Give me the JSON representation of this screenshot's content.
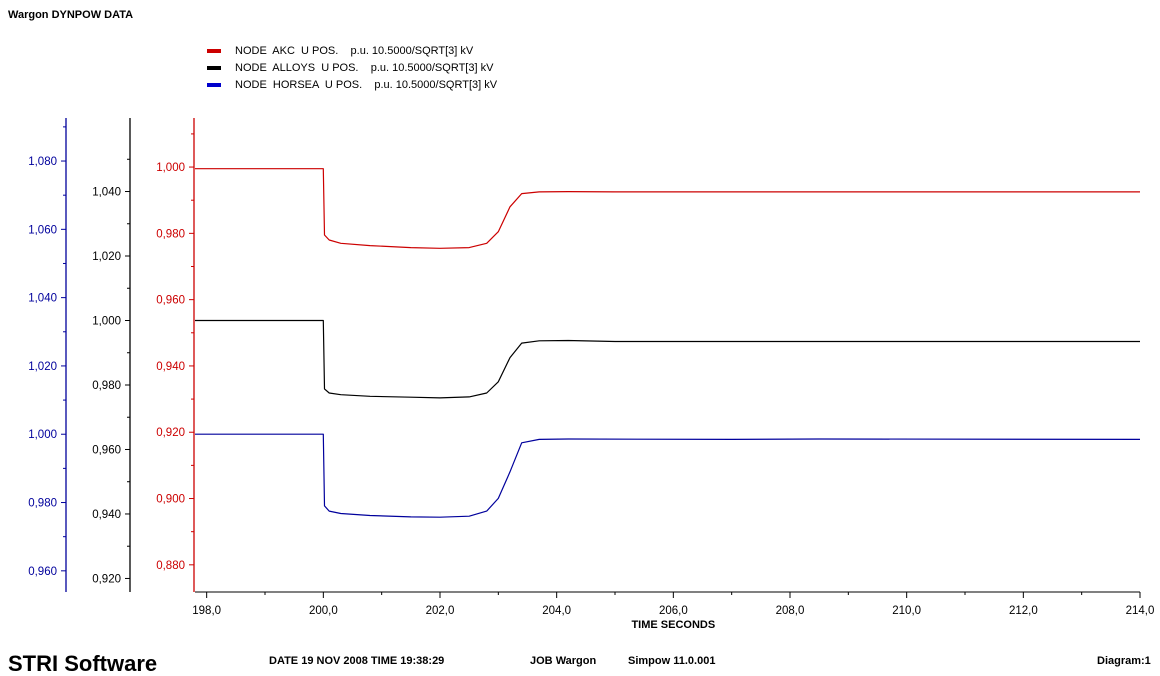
{
  "chart_title": "Wargon DYNPOW DATA",
  "footer": {
    "brand": "STRI Software",
    "date_label": "DATE",
    "date_value": "19 NOV 2008",
    "time_label": "TIME",
    "time_value": "19:38:29",
    "job_label": "JOB",
    "job_value": "Wargon",
    "version": "Simpow 11.0.001",
    "diagram": "Diagram:1"
  },
  "colors": {
    "red": "#cc0000",
    "black": "#000000",
    "blue": "#00009c"
  },
  "chart_data": {
    "type": "line",
    "title": "Wargon DYNPOW DATA",
    "xlabel": "TIME SECONDS",
    "xlim": [
      197.8,
      214.0
    ],
    "x_ticks": [
      "198,0",
      "200,0",
      "202,0",
      "204,0",
      "206,0",
      "208,0",
      "210,0",
      "212,0",
      "214,0"
    ],
    "grid": false,
    "legend_position": "top",
    "axes": [
      {
        "id": "red",
        "color": "#cc0000",
        "ylim": [
          0.8718,
          1.0148
        ],
        "ticks": [
          "0,880",
          "0,900",
          "0,920",
          "0,940",
          "0,960",
          "0,980",
          "1,000"
        ]
      },
      {
        "id": "black",
        "color": "#000000",
        "ylim": [
          0.9158,
          1.0628
        ],
        "ticks": [
          "0,920",
          "0,940",
          "0,960",
          "0,980",
          "1,000",
          "1,020",
          "1,040"
        ]
      },
      {
        "id": "blue",
        "color": "#00009c",
        "ylim": [
          0.9538,
          1.0926
        ],
        "ticks": [
          "0,960",
          "0,980",
          "1,000",
          "1,020",
          "1,040",
          "1,060",
          "1,080"
        ]
      }
    ],
    "series": [
      {
        "name": "NODE  AKC  U POS.    p.u. 10.5000/SQRT[3] kV",
        "axis": "red",
        "color": "#cc0000",
        "points": [
          [
            197.8,
            0.9995
          ],
          [
            200.0,
            0.9995
          ],
          [
            200.02,
            0.9795
          ],
          [
            200.1,
            0.978
          ],
          [
            200.3,
            0.977
          ],
          [
            200.8,
            0.9763
          ],
          [
            201.5,
            0.9757
          ],
          [
            202.0,
            0.9755
          ],
          [
            202.5,
            0.9757
          ],
          [
            202.8,
            0.977
          ],
          [
            203.0,
            0.9805
          ],
          [
            203.2,
            0.988
          ],
          [
            203.4,
            0.992
          ],
          [
            203.7,
            0.9925
          ],
          [
            204.2,
            0.9926
          ],
          [
            205.0,
            0.9925
          ],
          [
            214.0,
            0.9925
          ]
        ]
      },
      {
        "name": "NODE  ALLOYS  U POS.    p.u. 10.5000/SQRT[3] kV",
        "axis": "black",
        "color": "#000000",
        "points": [
          [
            197.8,
            1.0
          ],
          [
            200.0,
            1.0
          ],
          [
            200.02,
            0.9788
          ],
          [
            200.1,
            0.9775
          ],
          [
            200.3,
            0.977
          ],
          [
            200.8,
            0.9765
          ],
          [
            201.5,
            0.9762
          ],
          [
            202.0,
            0.976
          ],
          [
            202.5,
            0.9763
          ],
          [
            202.8,
            0.9775
          ],
          [
            203.0,
            0.981
          ],
          [
            203.2,
            0.9885
          ],
          [
            203.4,
            0.993
          ],
          [
            203.7,
            0.9937
          ],
          [
            204.2,
            0.9938
          ],
          [
            205.0,
            0.9935
          ],
          [
            214.0,
            0.9935
          ]
        ]
      },
      {
        "name": "NODE  HORSEA  U POS.    p.u. 10.5000/SQRT[3] kV",
        "axis": "blue",
        "color": "#00009c",
        "points": [
          [
            197.8,
            1.0
          ],
          [
            200.0,
            1.0
          ],
          [
            200.02,
            0.979
          ],
          [
            200.1,
            0.9775
          ],
          [
            200.3,
            0.9768
          ],
          [
            200.8,
            0.9762
          ],
          [
            201.5,
            0.9758
          ],
          [
            202.0,
            0.9757
          ],
          [
            202.5,
            0.976
          ],
          [
            202.8,
            0.9775
          ],
          [
            203.0,
            0.9812
          ],
          [
            203.2,
            0.989
          ],
          [
            203.4,
            0.9975
          ],
          [
            203.7,
            0.9985
          ],
          [
            204.2,
            0.9986
          ],
          [
            207.0,
            0.9985
          ],
          [
            208.5,
            0.9986
          ],
          [
            214.0,
            0.9985
          ]
        ]
      }
    ]
  }
}
